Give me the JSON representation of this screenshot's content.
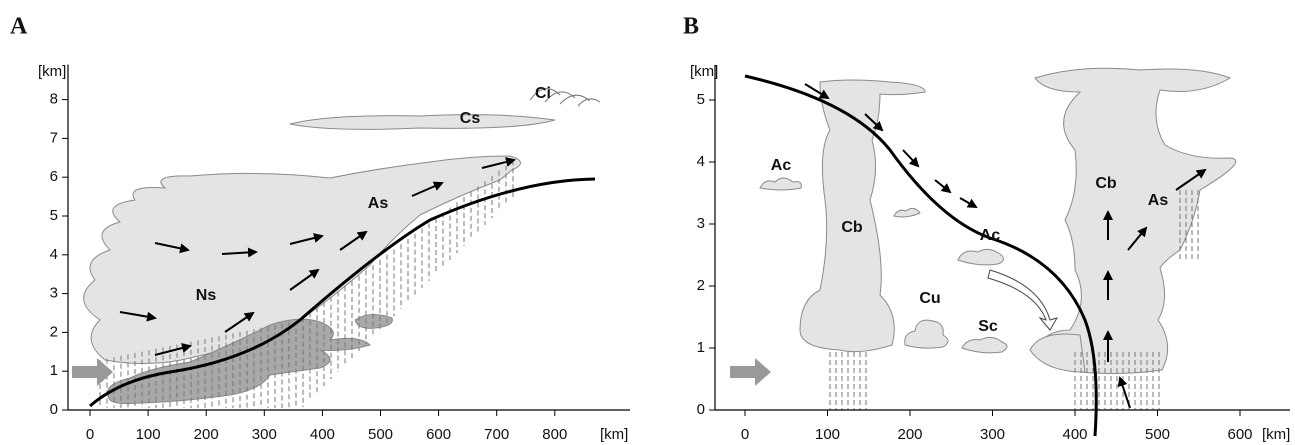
{
  "panels": [
    {
      "label": "A",
      "y_unit": "[km]",
      "x_unit": "[km]",
      "yticks": [
        0,
        1,
        2,
        3,
        4,
        5,
        6,
        7,
        8
      ],
      "xticks": [
        0,
        100,
        200,
        300,
        400,
        500,
        600,
        700,
        800
      ],
      "cloud_labels": [
        "Ci",
        "Cs",
        "As",
        "Ns"
      ]
    },
    {
      "label": "B",
      "y_unit": "[km]",
      "x_unit": "[km]",
      "yticks": [
        0,
        1,
        2,
        3,
        4,
        5
      ],
      "xticks": [
        0,
        100,
        200,
        300,
        400,
        500,
        600
      ],
      "cloud_labels": [
        "Ac",
        "Cb",
        "Cb",
        "Ac",
        "As",
        "Cu",
        "Sc"
      ]
    }
  ]
}
